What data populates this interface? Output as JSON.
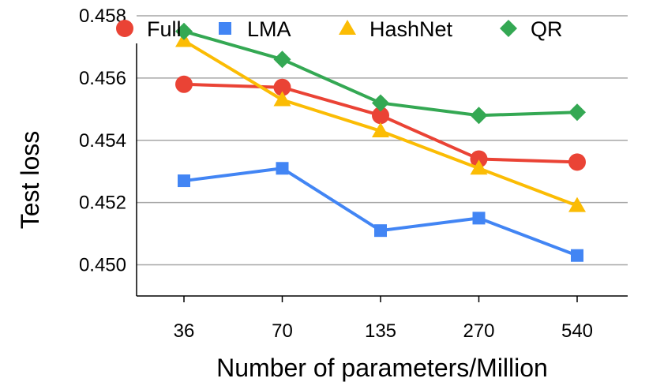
{
  "chart_data": {
    "type": "line",
    "title": "",
    "xlabel": "Number of parameters/Million",
    "ylabel": "Test loss",
    "categories": [
      "36",
      "70",
      "135",
      "270",
      "540"
    ],
    "ylim": [
      0.449,
      0.458
    ],
    "yticks": [
      "0.450",
      "0.452",
      "0.454",
      "0.456",
      "0.458"
    ],
    "ytick_values": [
      0.45,
      0.452,
      0.454,
      0.456,
      0.458
    ],
    "grid": true,
    "legend_position": "top",
    "series": [
      {
        "name": "Full",
        "color": "#EA4335",
        "marker": "circle",
        "values": [
          0.4558,
          0.4557,
          0.4548,
          0.4534,
          0.4533
        ]
      },
      {
        "name": "LMA",
        "color": "#4285F4",
        "marker": "square",
        "values": [
          0.4527,
          0.4531,
          0.4511,
          0.4515,
          0.4503
        ]
      },
      {
        "name": "HashNet",
        "color": "#FBBC04",
        "marker": "triangle",
        "values": [
          0.4572,
          0.4553,
          0.4543,
          0.4531,
          0.4519
        ]
      },
      {
        "name": "QR",
        "color": "#34A853",
        "marker": "diamond",
        "values": [
          0.4575,
          0.4566,
          0.4552,
          0.4548,
          0.4549
        ]
      }
    ]
  }
}
